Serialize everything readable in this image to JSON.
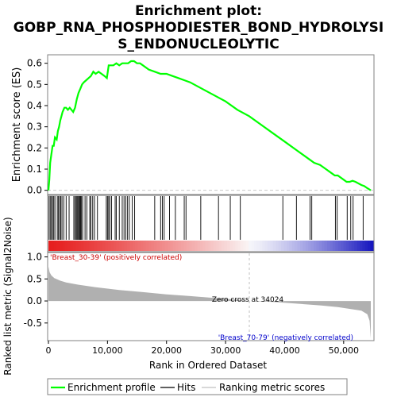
{
  "chart_data": {
    "type": "line",
    "title_line1": "Enrichment plot:",
    "title_line2": "GOBP_RNA_PHOSPHODIESTER_BOND_HYDROLYSI",
    "title_line3": "S_ENDONUCLEOLYTIC",
    "es_panel": {
      "ylabel": "Enrichment score (ES)",
      "ylim": [
        -0.02,
        0.64
      ],
      "yticks": [
        "0.0",
        "0.1",
        "0.2",
        "0.3",
        "0.4",
        "0.5",
        "0.6"
      ],
      "ytick_values": [
        0.0,
        0.1,
        0.2,
        0.3,
        0.4,
        0.5,
        0.6
      ],
      "line_color": "#00ff00",
      "points": [
        [
          0,
          0.0
        ],
        [
          150,
          0.05
        ],
        [
          300,
          0.13
        ],
        [
          500,
          0.17
        ],
        [
          700,
          0.21
        ],
        [
          900,
          0.21
        ],
        [
          1100,
          0.25
        ],
        [
          1400,
          0.24
        ],
        [
          1600,
          0.28
        ],
        [
          1800,
          0.3
        ],
        [
          2000,
          0.33
        ],
        [
          2200,
          0.35
        ],
        [
          2400,
          0.37
        ],
        [
          2700,
          0.39
        ],
        [
          3000,
          0.39
        ],
        [
          3300,
          0.38
        ],
        [
          3600,
          0.39
        ],
        [
          3900,
          0.38
        ],
        [
          4200,
          0.37
        ],
        [
          4500,
          0.39
        ],
        [
          4800,
          0.43
        ],
        [
          5100,
          0.46
        ],
        [
          5400,
          0.48
        ],
        [
          5700,
          0.5
        ],
        [
          6000,
          0.51
        ],
        [
          6400,
          0.52
        ],
        [
          6800,
          0.53
        ],
        [
          7200,
          0.54
        ],
        [
          7600,
          0.56
        ],
        [
          8000,
          0.55
        ],
        [
          8500,
          0.56
        ],
        [
          9000,
          0.55
        ],
        [
          9500,
          0.54
        ],
        [
          9900,
          0.53
        ],
        [
          10200,
          0.59
        ],
        [
          10600,
          0.59
        ],
        [
          11000,
          0.59
        ],
        [
          11500,
          0.6
        ],
        [
          12000,
          0.59
        ],
        [
          12500,
          0.6
        ],
        [
          13000,
          0.6
        ],
        [
          13500,
          0.6
        ],
        [
          14000,
          0.61
        ],
        [
          14500,
          0.61
        ],
        [
          15000,
          0.6
        ],
        [
          15500,
          0.6
        ],
        [
          16000,
          0.59
        ],
        [
          17000,
          0.57
        ],
        [
          18000,
          0.56
        ],
        [
          19000,
          0.55
        ],
        [
          20000,
          0.55
        ],
        [
          21000,
          0.54
        ],
        [
          22000,
          0.53
        ],
        [
          23000,
          0.52
        ],
        [
          24000,
          0.51
        ],
        [
          26000,
          0.48
        ],
        [
          28000,
          0.45
        ],
        [
          30000,
          0.42
        ],
        [
          32000,
          0.38
        ],
        [
          34000,
          0.35
        ],
        [
          36000,
          0.31
        ],
        [
          38000,
          0.27
        ],
        [
          40000,
          0.23
        ],
        [
          42000,
          0.19
        ],
        [
          44000,
          0.15
        ],
        [
          45000,
          0.13
        ],
        [
          46000,
          0.12
        ],
        [
          47000,
          0.1
        ],
        [
          48000,
          0.08
        ],
        [
          48500,
          0.07
        ],
        [
          49000,
          0.07
        ],
        [
          50000,
          0.05
        ],
        [
          50500,
          0.04
        ],
        [
          51000,
          0.04
        ],
        [
          51500,
          0.045
        ],
        [
          52000,
          0.04
        ],
        [
          53000,
          0.025
        ],
        [
          53500,
          0.02
        ],
        [
          54000,
          0.01
        ],
        [
          54600,
          0.0
        ]
      ]
    },
    "hits_panel": {
      "hit_positions": [
        100,
        300,
        500,
        700,
        900,
        1100,
        1500,
        1700,
        1900,
        2100,
        2300,
        2600,
        3000,
        3500,
        4300,
        4500,
        4700,
        4850,
        5000,
        5150,
        5300,
        5450,
        5600,
        5800,
        6200,
        6500,
        7000,
        7200,
        7500,
        7800,
        8300,
        9800,
        10000,
        10200,
        10400,
        10700,
        11300,
        11500,
        12000,
        12500,
        12800,
        13100,
        13400,
        13700,
        14200,
        14600,
        18000,
        19000,
        19300,
        19600,
        20500,
        21500,
        23000,
        23300,
        25800,
        28800,
        30800,
        32500,
        39700,
        42000,
        44300,
        44600,
        48600,
        48900,
        50600,
        51200,
        51600,
        53300
      ]
    },
    "metric_panel": {
      "ylabel": "Ranked list metric (Signal2Noise)",
      "xlabel": "Rank in Ordered Dataset",
      "ylim": [
        -0.9,
        1.1
      ],
      "yticks": [
        "-0.5",
        "0.0",
        "0.5",
        "1.0"
      ],
      "ytick_values": [
        -0.5,
        0.0,
        0.5,
        1.0
      ],
      "xlim": [
        0,
        55000
      ],
      "xticks": [
        "0",
        "10,000",
        "20,000",
        "30,000",
        "40,000",
        "50,000"
      ],
      "xtick_values": [
        0,
        10000,
        20000,
        30000,
        40000,
        50000
      ],
      "zero_cross_label": "Zero cross at 34024",
      "zero_cross": 34024,
      "positive_label": "'Breast_30-39' (positively correlated)",
      "negative_label": "'Breast_70-79' (negatively correlated)",
      "positive_label_color": "#cc0000",
      "negative_label_color": "#0000cc",
      "area_color": "#b0b0b0",
      "curve": [
        [
          0,
          0.78
        ],
        [
          200,
          0.65
        ],
        [
          500,
          0.58
        ],
        [
          1000,
          0.52
        ],
        [
          2000,
          0.46
        ],
        [
          3000,
          0.42
        ],
        [
          5000,
          0.37
        ],
        [
          8000,
          0.31
        ],
        [
          12000,
          0.25
        ],
        [
          16000,
          0.2
        ],
        [
          20000,
          0.15
        ],
        [
          24000,
          0.11
        ],
        [
          28000,
          0.07
        ],
        [
          32000,
          0.03
        ],
        [
          34024,
          0.0
        ],
        [
          38000,
          -0.02
        ],
        [
          42000,
          -0.06
        ],
        [
          46000,
          -0.1
        ],
        [
          49000,
          -0.14
        ],
        [
          51000,
          -0.18
        ],
        [
          53000,
          -0.22
        ],
        [
          54000,
          -0.3
        ],
        [
          54400,
          -0.45
        ],
        [
          54600,
          -0.85
        ]
      ]
    },
    "legend": {
      "items": [
        {
          "label": "Enrichment profile",
          "color": "#00ff00"
        },
        {
          "label": "Hits",
          "color": "#000000"
        },
        {
          "label": "Ranking metric scores",
          "color": "#c0c0c0"
        }
      ]
    }
  }
}
